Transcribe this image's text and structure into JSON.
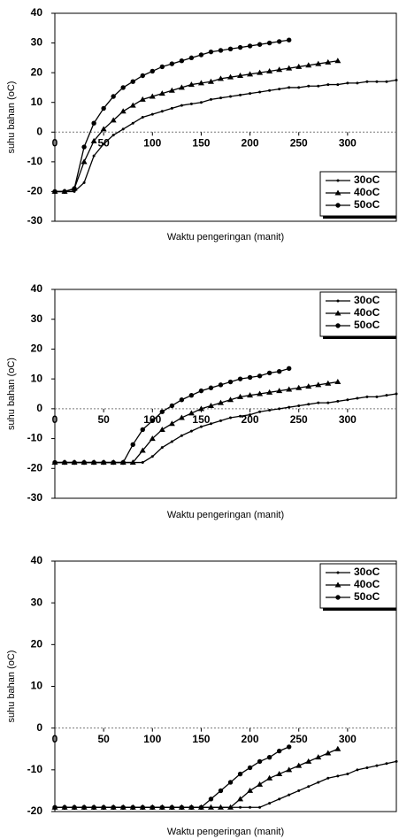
{
  "chart_data": [
    {
      "type": "line",
      "ylabel": "suhu bahan (oC)",
      "xlabel": "Waktu pengeringan (manit)",
      "x": [
        0,
        10,
        20,
        30,
        40,
        50,
        60,
        70,
        80,
        90,
        100,
        110,
        120,
        130,
        140,
        150,
        160,
        170,
        180,
        190,
        200,
        210,
        220,
        230,
        240,
        250,
        260,
        270,
        280,
        290,
        300,
        310,
        320,
        330,
        340,
        350
      ],
      "xlim": [
        0,
        350
      ],
      "xticks": [
        0,
        50,
        100,
        150,
        200,
        250,
        300
      ],
      "ylim": [
        -30,
        40
      ],
      "yticks": [
        -30,
        -20,
        -10,
        0,
        10,
        20,
        30,
        40
      ],
      "legend": "lower right",
      "series": [
        {
          "name": "30oC",
          "color": "#000000",
          "marker": "dot",
          "values": [
            -20,
            -20,
            -20,
            -17,
            -8,
            -4,
            -1,
            1,
            3,
            5,
            6,
            7,
            8,
            9,
            9.5,
            10,
            11,
            11.5,
            12,
            12.5,
            13,
            13.5,
            14,
            14.5,
            15,
            15,
            15.5,
            15.5,
            16,
            16,
            16.5,
            16.5,
            17,
            17,
            17,
            17.5
          ]
        },
        {
          "name": "40oC",
          "color": "#000000",
          "marker": "triangle",
          "values": [
            -20,
            -20,
            -19,
            -10,
            -3,
            1,
            4,
            7,
            9,
            11,
            12,
            13,
            14,
            15,
            16,
            16.5,
            17,
            18,
            18.5,
            19,
            19.5,
            20,
            20.5,
            21,
            21.5,
            22,
            22.5,
            23,
            23.5,
            24,
            null,
            null,
            null,
            null,
            null,
            null
          ]
        },
        {
          "name": "50oC",
          "color": "#000000",
          "marker": "circle",
          "values": [
            -20,
            -20,
            -19,
            -5,
            3,
            8,
            12,
            15,
            17,
            19,
            20.5,
            22,
            23,
            24,
            25,
            26,
            27,
            27.5,
            28,
            28.5,
            29,
            29.5,
            30,
            30.5,
            31,
            null,
            null,
            null,
            null,
            null,
            null,
            null,
            null,
            null,
            null,
            null
          ]
        }
      ]
    },
    {
      "type": "line",
      "ylabel": "suhu bahan (oC)",
      "xlabel": "Waktu pengeringan (manit)",
      "x": [
        0,
        10,
        20,
        30,
        40,
        50,
        60,
        70,
        80,
        90,
        100,
        110,
        120,
        130,
        140,
        150,
        160,
        170,
        180,
        190,
        200,
        210,
        220,
        230,
        240,
        250,
        260,
        270,
        280,
        290,
        300,
        310,
        320,
        330,
        340,
        350
      ],
      "xlim": [
        0,
        350
      ],
      "xticks": [
        0,
        50,
        100,
        150,
        200,
        250,
        300
      ],
      "ylim": [
        -30,
        40
      ],
      "yticks": [
        -30,
        -20,
        -10,
        0,
        10,
        20,
        30,
        40
      ],
      "legend": "upper right",
      "series": [
        {
          "name": "30oC",
          "color": "#000000",
          "marker": "dot",
          "values": [
            -18,
            -18,
            -18,
            -18,
            -18,
            -18,
            -18,
            -18,
            -18,
            -18,
            -16,
            -13,
            -11,
            -9,
            -7.5,
            -6,
            -5,
            -4,
            -3,
            -2.5,
            -2,
            -1,
            -0.5,
            0,
            0.5,
            1,
            1.5,
            2,
            2,
            2.5,
            3,
            3.5,
            4,
            4,
            4.5,
            5
          ]
        },
        {
          "name": "40oC",
          "color": "#000000",
          "marker": "triangle",
          "values": [
            -18,
            -18,
            -18,
            -18,
            -18,
            -18,
            -18,
            -18,
            -18,
            -14,
            -10,
            -7,
            -5,
            -3,
            -1.5,
            0,
            1,
            2,
            3,
            4,
            4.5,
            5,
            5.5,
            6,
            6.5,
            7,
            7.5,
            8,
            8.5,
            9,
            null,
            null,
            null,
            null,
            null,
            null
          ]
        },
        {
          "name": "50oC",
          "color": "#000000",
          "marker": "circle",
          "values": [
            -18,
            -18,
            -18,
            -18,
            -18,
            -18,
            -18,
            -18,
            -12,
            -7,
            -4,
            -1,
            1,
            3,
            4.5,
            6,
            7,
            8,
            9,
            10,
            10.5,
            11,
            12,
            12.5,
            13.5,
            null,
            null,
            null,
            null,
            null,
            null,
            null,
            null,
            null,
            null,
            null
          ]
        }
      ]
    },
    {
      "type": "line",
      "ylabel": "suhu bahan (oC)",
      "xlabel": "Waktu pengeringan (manit)",
      "x": [
        0,
        10,
        20,
        30,
        40,
        50,
        60,
        70,
        80,
        90,
        100,
        110,
        120,
        130,
        140,
        150,
        160,
        170,
        180,
        190,
        200,
        210,
        220,
        230,
        240,
        250,
        260,
        270,
        280,
        290,
        300,
        310,
        320,
        330,
        340,
        350
      ],
      "xlim": [
        0,
        350
      ],
      "xticks": [
        0,
        50,
        100,
        150,
        200,
        250,
        300
      ],
      "ylim": [
        -20,
        40
      ],
      "yticks": [
        -20,
        -10,
        0,
        10,
        20,
        30,
        40
      ],
      "legend": "upper right",
      "series": [
        {
          "name": "30oC",
          "color": "#000000",
          "marker": "dot",
          "values": [
            -19,
            -19,
            -19,
            -19,
            -19,
            -19,
            -19,
            -19,
            -19,
            -19,
            -19,
            -19,
            -19,
            -19,
            -19,
            -19,
            -19,
            -19,
            -19,
            -19,
            -19,
            -19,
            -18,
            -17,
            -16,
            -15,
            -14,
            -13,
            -12,
            -11.5,
            -11,
            -10,
            -9.5,
            -9,
            -8.5,
            -8
          ]
        },
        {
          "name": "40oC",
          "color": "#000000",
          "marker": "triangle",
          "values": [
            -19,
            -19,
            -19,
            -19,
            -19,
            -19,
            -19,
            -19,
            -19,
            -19,
            -19,
            -19,
            -19,
            -19,
            -19,
            -19,
            -19,
            -19,
            -19,
            -17,
            -15,
            -13.5,
            -12,
            -11,
            -10,
            -9,
            -8,
            -7,
            -6,
            -5,
            null,
            null,
            null,
            null,
            null,
            null
          ]
        },
        {
          "name": "50oC",
          "color": "#000000",
          "marker": "circle",
          "values": [
            -19,
            -19,
            -19,
            -19,
            -19,
            -19,
            -19,
            -19,
            -19,
            -19,
            -19,
            -19,
            -19,
            -19,
            -19,
            -19,
            -17,
            -15,
            -13,
            -11,
            -9.5,
            -8,
            -7,
            -5.5,
            -4.5,
            null,
            null,
            null,
            null,
            null,
            null,
            null,
            null,
            null,
            null,
            null
          ]
        }
      ]
    }
  ]
}
